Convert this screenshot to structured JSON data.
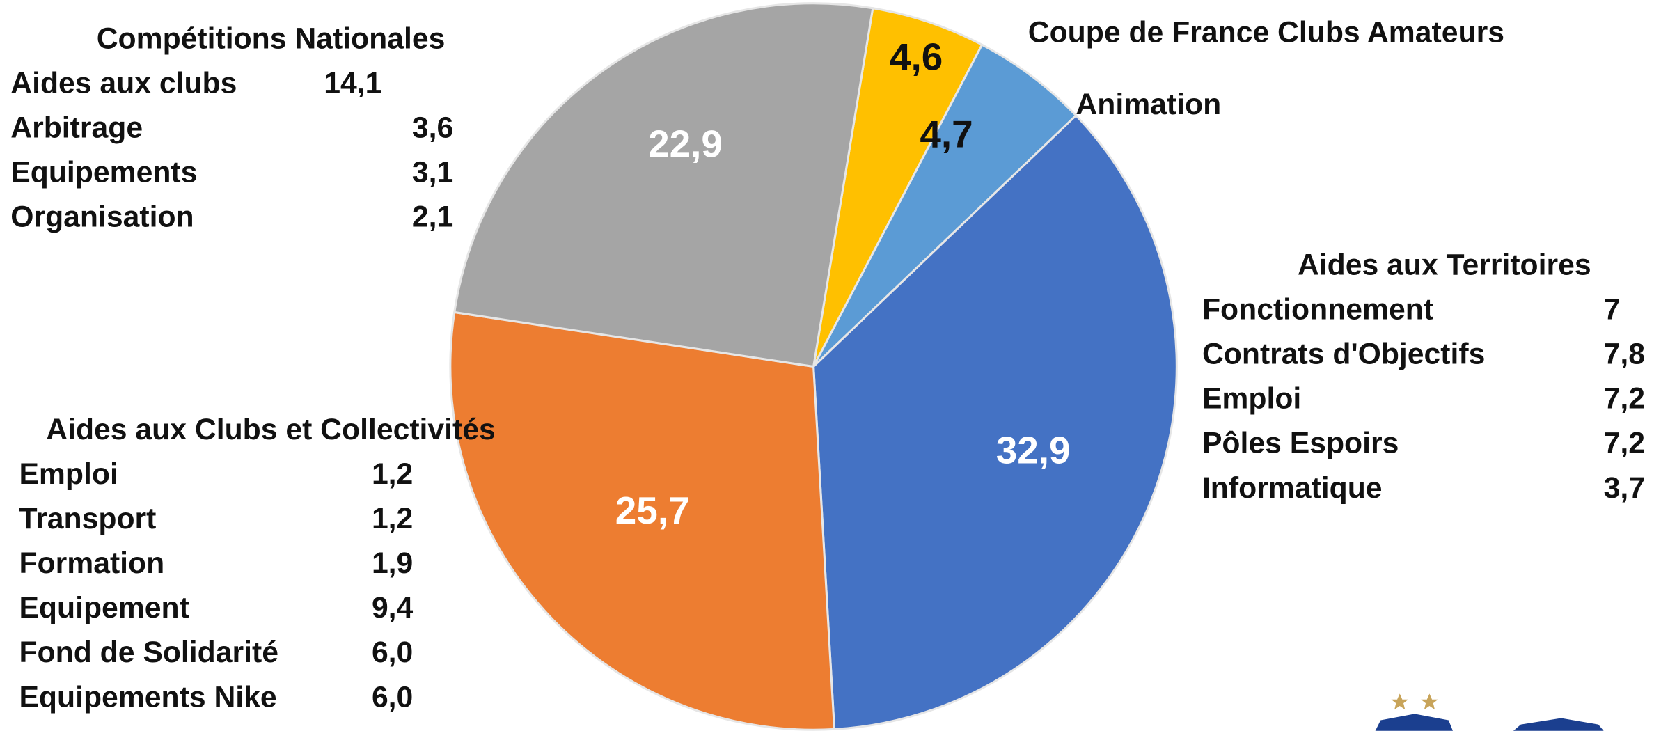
{
  "chart_data": {
    "type": "pie",
    "categories": [
      "Coupe de France Clubs Amateurs",
      "Animation",
      "Aides aux Territoires",
      "Aides aux Clubs et Collectivités",
      "Compétitions Nationales"
    ],
    "values": [
      4.6,
      4.7,
      32.9,
      25.7,
      22.9
    ],
    "value_labels": [
      "4,6",
      "4,7",
      "32,9",
      "25,7",
      "22,9"
    ],
    "colors": [
      "#ffc000",
      "#5b9bd5",
      "#4472c4",
      "#ed7d31",
      "#a5a5a5"
    ],
    "details": [
      [],
      [],
      [
        [
          "Fonctionnement",
          "7"
        ],
        [
          "Contrats d'Objectifs",
          "7,8"
        ],
        [
          "Emploi",
          "7,2"
        ],
        [
          "Pôles Espoirs",
          "7,2"
        ],
        [
          "Informatique",
          "3,7"
        ]
      ],
      [
        [
          "Emploi",
          "1,2"
        ],
        [
          "Transport",
          "1,2"
        ],
        [
          "Formation",
          "1,9"
        ],
        [
          "Equipement",
          "9,4"
        ],
        [
          "Fond de Solidarité",
          "6,0"
        ],
        [
          "Equipements Nike",
          "6,0"
        ]
      ],
      [
        [
          "Aides aux clubs",
          "14,1"
        ],
        [
          "Arbitrage",
          "3,6"
        ],
        [
          "Equipements",
          "3,1"
        ],
        [
          "Organisation",
          "2,1"
        ]
      ]
    ]
  }
}
